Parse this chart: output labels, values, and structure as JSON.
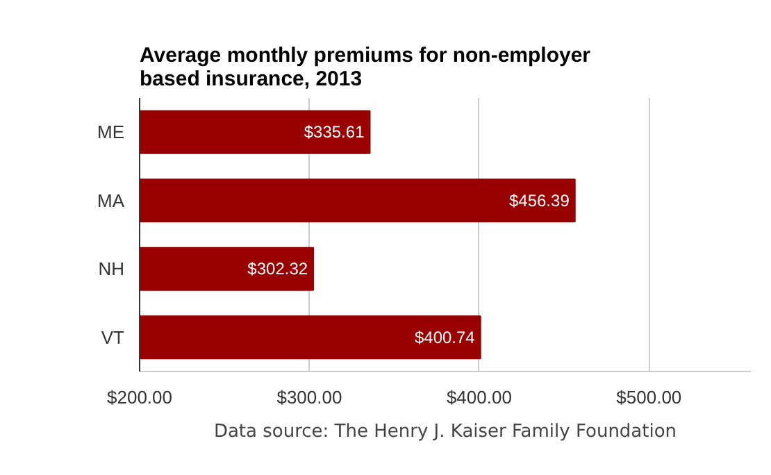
{
  "chart_data": {
    "type": "bar",
    "orientation": "horizontal",
    "title": "Average monthly premiums for non-employer\nbased insurance, 2013",
    "categories": [
      "ME",
      "MA",
      "NH",
      "VT"
    ],
    "series": [
      {
        "color": "#990000",
        "values": [
          335.61,
          456.39,
          302.32,
          400.74
        ],
        "value_labels": [
          "$335.61",
          "$456.39",
          "$302.32",
          "$400.74"
        ]
      }
    ],
    "xlim": [
      200,
      560
    ],
    "xticks": [
      {
        "value": 200,
        "label": "$200.00"
      },
      {
        "value": 300,
        "label": "$300.00"
      },
      {
        "value": 400,
        "label": "$400.00"
      },
      {
        "value": 500,
        "label": "$500.00"
      }
    ],
    "grid": "x",
    "annotations": [
      "Data source: The Henry J. Kaiser Family Foundation"
    ]
  }
}
